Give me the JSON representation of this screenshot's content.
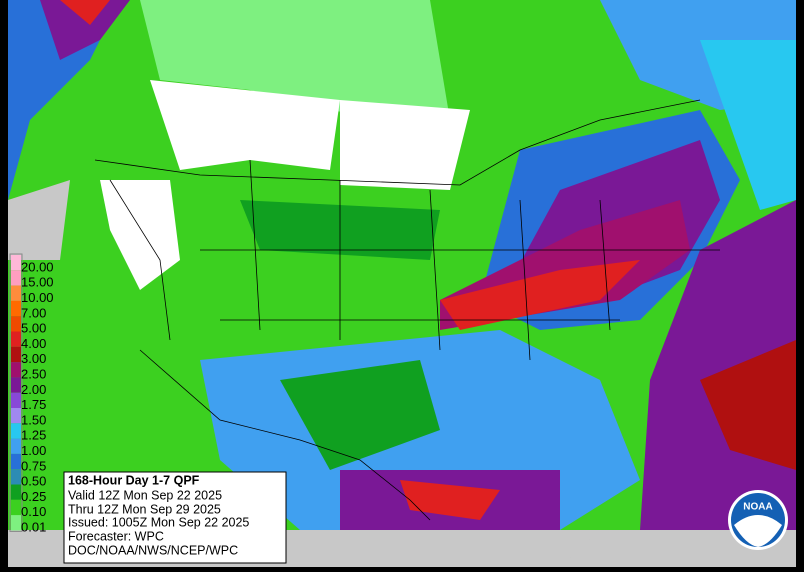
{
  "legend": {
    "items": [
      {
        "label": "20.00",
        "color": "#ffb8d8"
      },
      {
        "label": "15.00",
        "color": "#ff9ec0"
      },
      {
        "label": "10.00",
        "color": "#ff8c3c"
      },
      {
        "label": "7.00",
        "color": "#ff6a00"
      },
      {
        "label": "5.00",
        "color": "#f04a00"
      },
      {
        "label": "4.00",
        "color": "#e02020"
      },
      {
        "label": "3.00",
        "color": "#b01010"
      },
      {
        "label": "2.50",
        "color": "#a0106e"
      },
      {
        "label": "2.00",
        "color": "#7a1896"
      },
      {
        "label": "1.75",
        "color": "#8848d8"
      },
      {
        "label": "1.50",
        "color": "#a088f0"
      },
      {
        "label": "1.25",
        "color": "#28c8f0"
      },
      {
        "label": "1.00",
        "color": "#40a0f0"
      },
      {
        "label": "0.75",
        "color": "#2870d8"
      },
      {
        "label": "0.50",
        "color": "#2c8cb4"
      },
      {
        "label": "0.25",
        "color": "#10a020"
      },
      {
        "label": "0.10",
        "color": "#3cd020"
      },
      {
        "label": "0.01",
        "color": "#7ef080"
      }
    ]
  },
  "info": {
    "title": "168-Hour Day 1-7 QPF",
    "lines": [
      "Valid 12Z Mon Sep 22 2025",
      "Thru 12Z Mon Sep 29 2025",
      "Issued: 1005Z Mon Sep 22 2025",
      "Forecaster: WPC",
      "DOC/NOAA/NWS/NCEP/WPC"
    ]
  },
  "logo": "NOAA"
}
